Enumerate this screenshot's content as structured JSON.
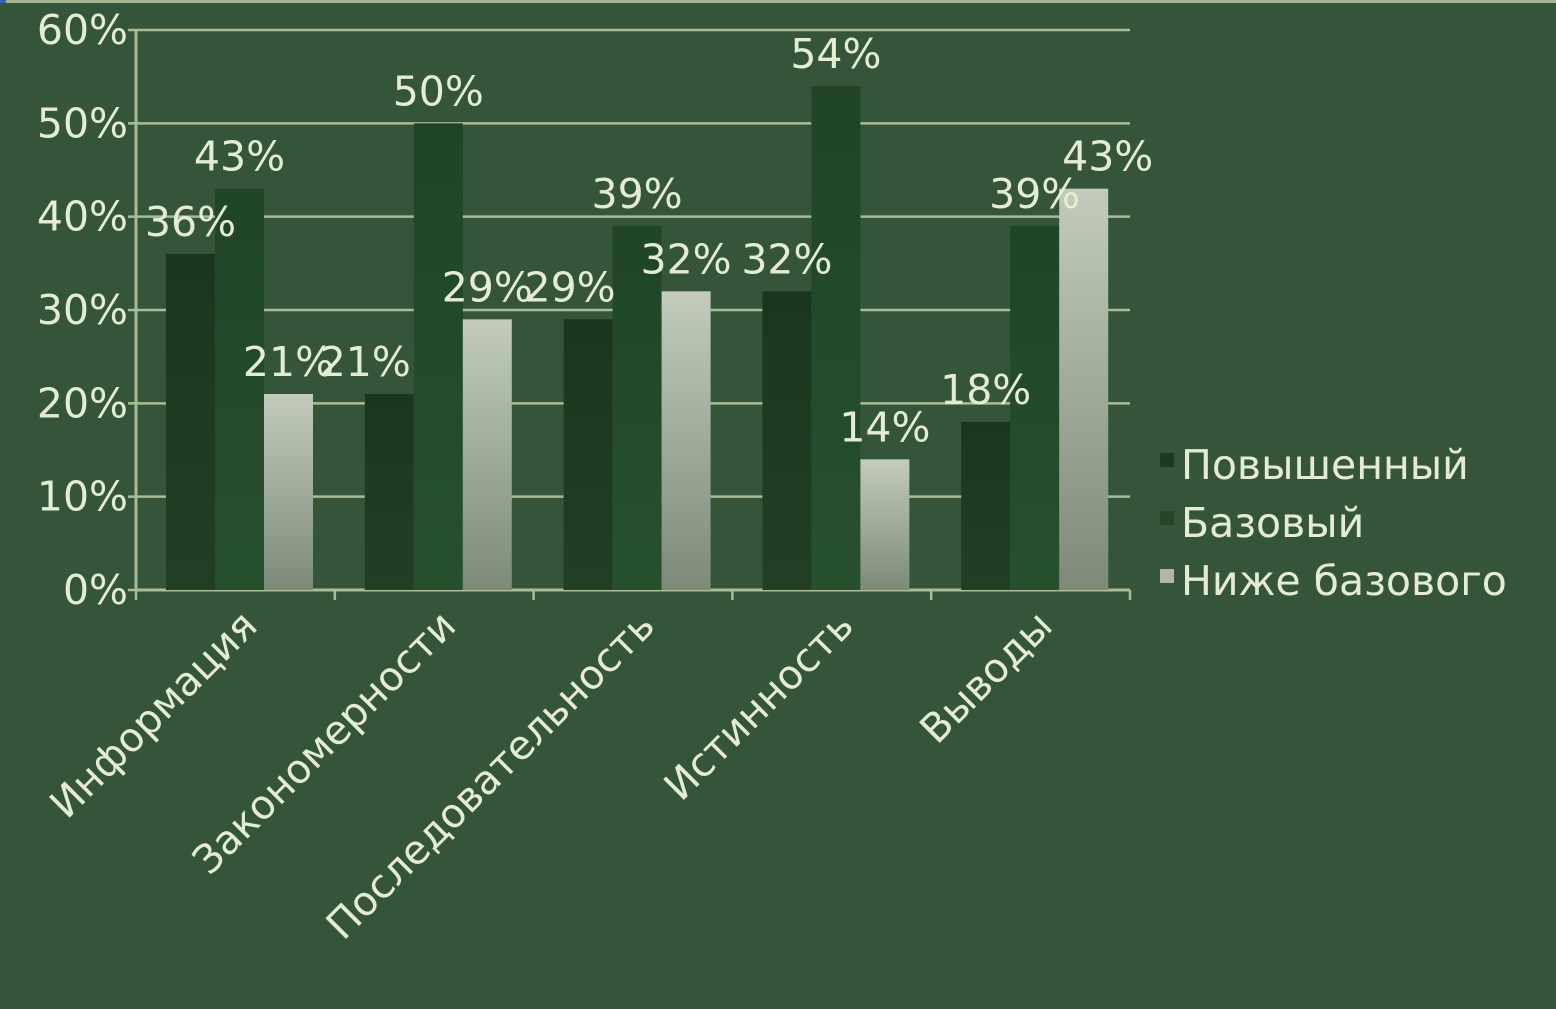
{
  "colors": {
    "background": "#35553a",
    "grid": "#a9bc95",
    "text": "#e4ecd2",
    "series": [
      "#1d3a20",
      "#22482a",
      "#aeb8a8"
    ]
  },
  "chart_data": {
    "type": "bar",
    "title": "",
    "xlabel": "",
    "ylabel": "",
    "ylim": [
      0,
      60
    ],
    "y_ticks": [
      "0%",
      "10%",
      "20%",
      "30%",
      "40%",
      "50%",
      "60%"
    ],
    "grid": true,
    "legend_position": "right",
    "categories": [
      "Информация",
      "Закономерности",
      "Последовательность",
      "Истинность",
      "Выводы"
    ],
    "series": [
      {
        "name": "Повышенный",
        "values": [
          36,
          21,
          29,
          32,
          18
        ],
        "labels": [
          "36%",
          "21%",
          "29%",
          "32%",
          "18%"
        ]
      },
      {
        "name": "Базовый",
        "values": [
          43,
          50,
          39,
          54,
          39
        ],
        "labels": [
          "43%",
          "50%",
          "39%",
          "54%",
          "39%"
        ]
      },
      {
        "name": "Ниже базового",
        "values": [
          21,
          29,
          32,
          14,
          43
        ],
        "labels": [
          "21%",
          "29%",
          "32%",
          "14%",
          "43%"
        ]
      }
    ]
  }
}
